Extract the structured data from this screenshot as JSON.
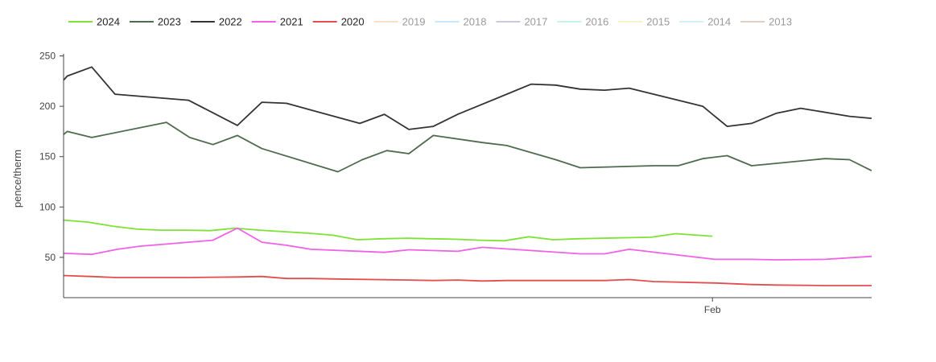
{
  "chart_data": {
    "type": "line",
    "title": "",
    "xlabel": "",
    "ylabel": "pence/therm",
    "ylim": [
      10,
      252
    ],
    "y_ticks": [
      50,
      100,
      150,
      200,
      250
    ],
    "x_tick_labels": [
      {
        "at": 26.5,
        "label": "Feb"
      }
    ],
    "xlim": [
      0,
      33
    ],
    "grid": false,
    "legend": "top",
    "series": [
      {
        "name": "2024",
        "color": "#7de235",
        "visible": true,
        "x": [
          0,
          1,
          2,
          3,
          4,
          5,
          6,
          7,
          8,
          9,
          10,
          11,
          12,
          13,
          14,
          15,
          16,
          17,
          18,
          19,
          20,
          21,
          22,
          23,
          24,
          25,
          26.5
        ],
        "y": [
          87,
          85,
          81,
          78,
          77,
          77,
          76.5,
          79,
          77,
          75.5,
          74,
          72,
          67.5,
          68.5,
          69,
          68.5,
          68,
          67,
          66.5,
          70.5,
          67.5,
          68.5,
          69,
          69.5,
          70,
          73.5,
          71
        ]
      },
      {
        "name": "2023",
        "color": "#4e6b4e",
        "visible": true,
        "x": [
          0,
          0.15,
          1.15,
          4.2,
          5.15,
          6.1,
          7.1,
          8.1,
          11.2,
          12.2,
          13.2,
          14.1,
          15.1,
          17.1,
          18.1,
          20.1,
          21.1,
          24.1,
          25.1,
          26.1,
          27.1,
          28.1,
          31.1,
          32.1,
          33
        ],
        "y": [
          172,
          175,
          169,
          184,
          169,
          162,
          171,
          158,
          135,
          147,
          156,
          153,
          171,
          164,
          161,
          147,
          139,
          141,
          141,
          148,
          151,
          141,
          148,
          147,
          136
        ]
      },
      {
        "name": "2022",
        "color": "#333333",
        "visible": true,
        "x": [
          0,
          0.15,
          1.15,
          2.1,
          5.1,
          7.1,
          8.1,
          9.1,
          12.1,
          13.1,
          14.1,
          15.1,
          16.1,
          19.1,
          20.1,
          21.1,
          22.1,
          23.1,
          26.1,
          27.1,
          28.1,
          29.1,
          30.1,
          32.1,
          33
        ],
        "y": [
          226,
          230,
          239,
          212,
          206,
          181,
          204,
          203,
          183,
          192,
          177,
          180,
          192,
          222,
          221,
          217,
          216,
          218,
          200,
          180,
          183,
          193,
          198,
          190,
          188
        ]
      },
      {
        "name": "2021",
        "color": "#f061e6",
        "visible": true,
        "x": [
          0,
          1.15,
          2.2,
          3.1,
          6.1,
          7.1,
          8.1,
          9.1,
          10.1,
          13.1,
          14.1,
          16.1,
          17.1,
          21.1,
          22.1,
          23.1,
          26.6,
          28.1,
          29.1,
          31.1,
          33
        ],
        "y": [
          54,
          53,
          58,
          61,
          67,
          79,
          65,
          62,
          58,
          55,
          57.5,
          56,
          60,
          53.5,
          53.5,
          58,
          48,
          48,
          47.5,
          48,
          51
        ]
      },
      {
        "name": "2020",
        "color": "#e44d4d",
        "visible": true,
        "x": [
          0,
          1.1,
          2.15,
          5.1,
          7.1,
          8.1,
          9.1,
          10.1,
          11.1,
          14.1,
          15.1,
          16.1,
          17.1,
          18.1,
          22.1,
          23.1,
          24.1,
          26.6,
          28.1,
          29.1,
          31.1,
          33
        ],
        "y": [
          32,
          31,
          30,
          30,
          30.5,
          31,
          29,
          29,
          28.5,
          27.5,
          27,
          27.5,
          26.5,
          27,
          27,
          28,
          26,
          24.5,
          23,
          22.5,
          22,
          22
        ]
      },
      {
        "name": "2019",
        "color": "#f6c48c",
        "visible": false,
        "x": [],
        "y": []
      },
      {
        "name": "2018",
        "color": "#8fd2f8",
        "visible": false,
        "x": [],
        "y": []
      },
      {
        "name": "2017",
        "color": "#9b93c7",
        "visible": false,
        "x": [],
        "y": []
      },
      {
        "name": "2016",
        "color": "#8ee8d4",
        "visible": false,
        "x": [],
        "y": []
      },
      {
        "name": "2015",
        "color": "#f8e49a",
        "visible": false,
        "x": [],
        "y": []
      },
      {
        "name": "2014",
        "color": "#9fe3f0",
        "visible": false,
        "x": [],
        "y": []
      },
      {
        "name": "2013",
        "color": "#c4a088",
        "visible": false,
        "x": [],
        "y": []
      }
    ]
  }
}
